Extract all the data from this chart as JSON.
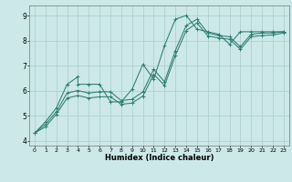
{
  "title": "",
  "xlabel": "Humidex (Indice chaleur)",
  "background_color": "#cce8e8",
  "grid_color": "#aacccc",
  "line_color": "#2e7d72",
  "xlim": [
    -0.5,
    23.5
  ],
  "ylim": [
    3.8,
    9.4
  ],
  "xticks": [
    0,
    1,
    2,
    3,
    4,
    5,
    6,
    7,
    8,
    9,
    10,
    11,
    12,
    13,
    14,
    15,
    16,
    17,
    18,
    19,
    20,
    21,
    22,
    23
  ],
  "yticks": [
    4,
    5,
    6,
    7,
    8,
    9
  ],
  "curves": [
    {
      "x": [
        0,
        1,
        2,
        3,
        4,
        4,
        5,
        6,
        7,
        8,
        9,
        10,
        11,
        12,
        13,
        14,
        15,
        16,
        17,
        18,
        19,
        20,
        21,
        22,
        23
      ],
      "y": [
        4.3,
        4.75,
        5.3,
        6.25,
        6.55,
        6.25,
        6.25,
        6.25,
        5.55,
        5.55,
        6.05,
        7.05,
        6.45,
        7.8,
        8.85,
        9.0,
        8.45,
        8.35,
        8.25,
        7.85,
        8.35,
        8.35,
        8.35,
        8.35,
        8.35
      ]
    },
    {
      "x": [
        0,
        1,
        2,
        3,
        4,
        5,
        6,
        7,
        8,
        9,
        10,
        11,
        12,
        13,
        14,
        15,
        16,
        17,
        18,
        19,
        20,
        21,
        22,
        23
      ],
      "y": [
        4.3,
        4.65,
        5.15,
        5.9,
        6.0,
        5.9,
        5.95,
        5.95,
        5.6,
        5.65,
        5.95,
        6.85,
        6.35,
        7.6,
        8.6,
        8.85,
        8.3,
        8.2,
        8.15,
        7.75,
        8.25,
        8.3,
        8.3,
        8.35
      ]
    },
    {
      "x": [
        0,
        1,
        2,
        3,
        4,
        5,
        6,
        7,
        8,
        9,
        10,
        11,
        12,
        13,
        14,
        15,
        16,
        17,
        18,
        19,
        20,
        21,
        22,
        23
      ],
      "y": [
        4.3,
        4.55,
        5.05,
        5.7,
        5.8,
        5.7,
        5.75,
        5.75,
        5.45,
        5.5,
        5.78,
        6.65,
        6.2,
        7.4,
        8.4,
        8.7,
        8.18,
        8.1,
        8.05,
        7.65,
        8.15,
        8.2,
        8.22,
        8.3
      ]
    }
  ]
}
